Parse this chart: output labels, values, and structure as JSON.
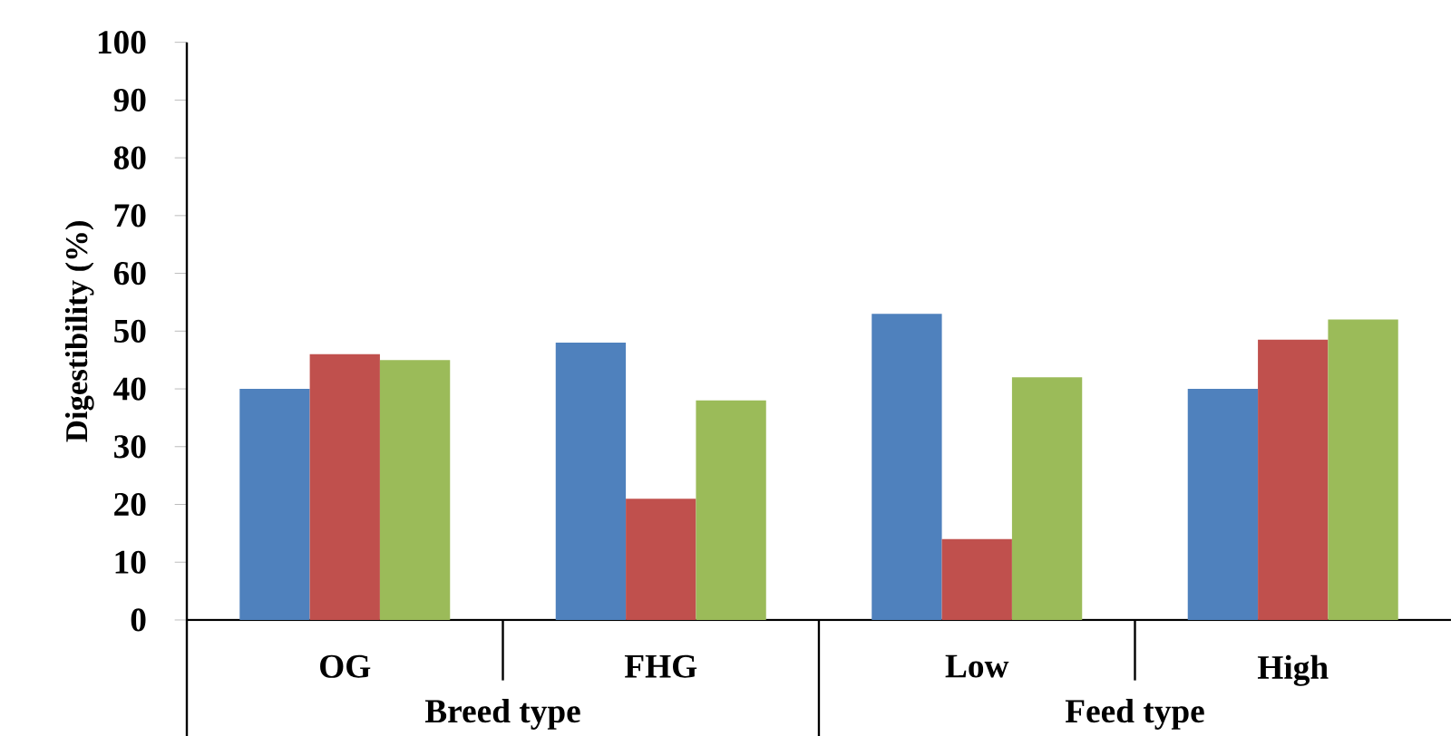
{
  "chart_data": {
    "type": "bar",
    "ylabel": "Digestibility (%)",
    "categories": [
      "OG",
      "FHG",
      "Low",
      "High"
    ],
    "series": [
      {
        "color": "#4f81bd",
        "values": [
          40,
          48,
          53,
          40
        ]
      },
      {
        "color": "#c0504d",
        "values": [
          46,
          21,
          14,
          48.5
        ]
      },
      {
        "color": "#9bbb59",
        "values": [
          45,
          38,
          42,
          52
        ]
      }
    ],
    "ylim": [
      0,
      100
    ],
    "yticks": [
      0,
      10,
      20,
      30,
      40,
      50,
      60,
      70,
      80,
      90,
      100
    ],
    "annotations": [
      "Breed type",
      "Feed type"
    ]
  }
}
